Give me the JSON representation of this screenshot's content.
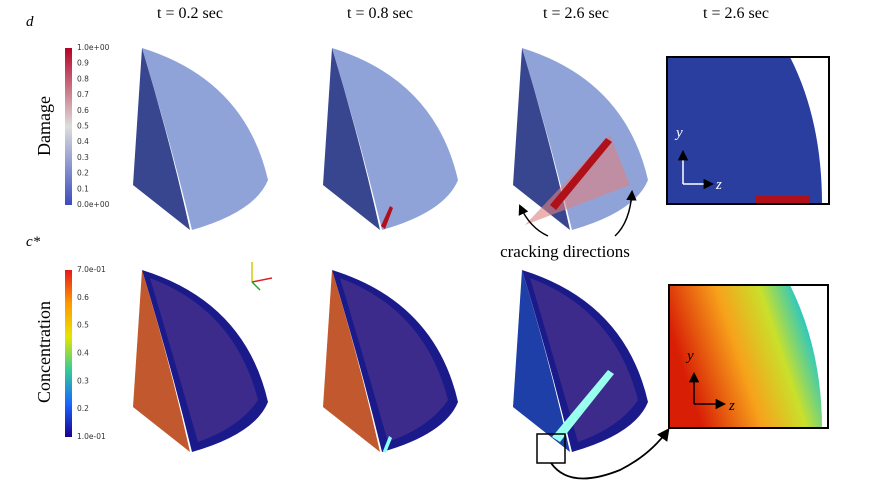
{
  "columns": [
    "t = 0.2 sec",
    "t = 0.8 sec",
    "t = 2.6 sec",
    "t = 2.6 sec"
  ],
  "rows": [
    {
      "symbol": "d",
      "label": "Damage",
      "colorbar": [
        "1.0e+00",
        "0.9",
        "0.8",
        "0.7",
        "0.6",
        "0.5",
        "0.4",
        "0.3",
        "0.2",
        "0.1",
        "0.0e+00"
      ]
    },
    {
      "symbol": "c*",
      "label": "Concentration",
      "colorbar": [
        "7.0e-01",
        "0.6",
        "0.5",
        "0.4",
        "0.3",
        "0.2",
        "1.0e-01"
      ]
    }
  ],
  "annotation": "cracking directions",
  "inset_axes": {
    "y": "y",
    "z": "z"
  }
}
